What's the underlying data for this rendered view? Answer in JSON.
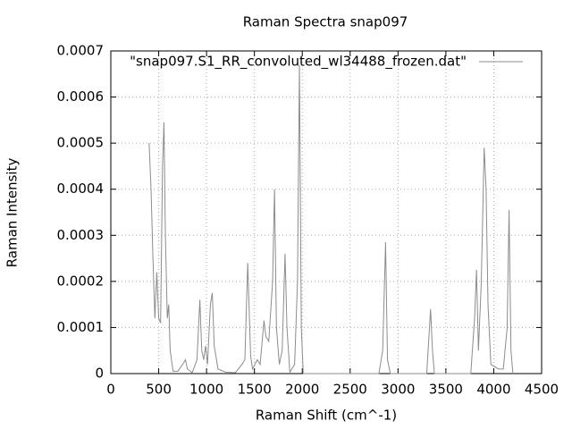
{
  "chart_data": {
    "type": "line",
    "title": "Raman Spectra snap097",
    "x_label": "Raman Shift (cm^-1)",
    "y_label": "Raman Intensity",
    "xlim": [
      0,
      4500
    ],
    "xticks": [
      0,
      500,
      1000,
      1500,
      2000,
      2500,
      3000,
      3500,
      4000,
      4500
    ],
    "ylim": [
      0,
      0.0007
    ],
    "yticks": [
      0,
      0.0001,
      0.0002,
      0.0003,
      0.0004,
      0.0005,
      0.0006,
      0.0007
    ],
    "grid": true,
    "legend": "top-right",
    "series": [
      {
        "name": "\"snap097.S1_RR_convoluted_wl34488_frozen.dat\"",
        "color": "#8c8c8c",
        "x": [
          400,
          420,
          440,
          460,
          480,
          500,
          520,
          540,
          555,
          570,
          590,
          605,
          620,
          650,
          700,
          750,
          780,
          800,
          850,
          900,
          930,
          950,
          970,
          990,
          1010,
          1040,
          1060,
          1080,
          1120,
          1200,
          1300,
          1370,
          1400,
          1430,
          1460,
          1480,
          1530,
          1560,
          1600,
          1620,
          1650,
          1690,
          1710,
          1730,
          1760,
          1790,
          1820,
          1840,
          1870,
          1920,
          1950,
          1970,
          1990,
          2010,
          2500,
          2800,
          2840,
          2870,
          2890,
          2920,
          3300,
          3340,
          3360,
          3380,
          3760,
          3800,
          3820,
          3840,
          3870,
          3900,
          3920,
          3940,
          3970,
          4050,
          4100,
          4140,
          4160,
          4180,
          4200
        ],
        "values": [
          0.0005,
          0.0004,
          0.00025,
          0.00012,
          0.00022,
          0.00012,
          0.00011,
          0.00045,
          0.000545,
          0.0003,
          0.00012,
          0.00015,
          5e-05,
          5e-06,
          5e-06,
          2e-05,
          3e-05,
          1e-05,
          2e-06,
          3e-05,
          0.00016,
          5e-05,
          3e-05,
          6e-05,
          2e-05,
          0.00015,
          0.000175,
          6e-05,
          1e-05,
          3e-06,
          2e-06,
          2e-05,
          3e-05,
          0.00024,
          4e-05,
          1e-05,
          3e-05,
          2e-05,
          0.000115,
          8e-05,
          7e-05,
          0.0002,
          0.0004,
          0.0001,
          2e-05,
          5e-05,
          0.00026,
          0.0001,
          3e-06,
          2e-05,
          0.0002,
          0.00067,
          0.0001,
          0,
          0,
          0,
          5e-05,
          0.000285,
          3e-05,
          0,
          0,
          0.00014,
          5e-05,
          0,
          0,
          0.00012,
          0.000225,
          5e-05,
          0.0002,
          0.00049,
          0.0004,
          0.00015,
          2e-05,
          1e-05,
          1e-05,
          0.0001,
          0.000355,
          5e-05,
          0
        ]
      }
    ]
  }
}
